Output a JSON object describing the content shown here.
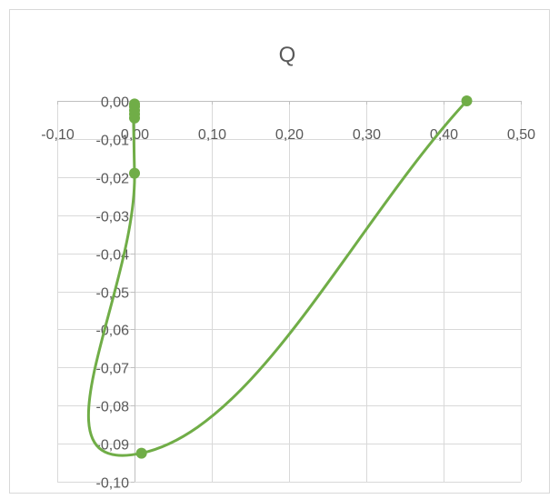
{
  "chart_data": {
    "type": "scatter",
    "title": "Q",
    "xlabel": "",
    "ylabel": "",
    "xlim": [
      -0.1,
      0.5
    ],
    "ylim": [
      -0.1,
      0.0
    ],
    "x_ticks": [
      "-0,10",
      "0,00",
      "0,10",
      "0,20",
      "0,30",
      "0,40",
      "0,50"
    ],
    "y_ticks": [
      "0,00",
      "-0,01",
      "-0,02",
      "-0,03",
      "-0,04",
      "-0,05",
      "-0,06",
      "-0,07",
      "-0,08",
      "-0,09",
      "-0,10"
    ],
    "grid": true,
    "legend": "none",
    "series": [
      {
        "color": "#70ad47",
        "line": "smooth",
        "points": [
          {
            "x": 0.43,
            "y": 0.0
          },
          {
            "x": 0.009,
            "y": -0.0925
          },
          {
            "x": 0.0,
            "y": -0.019
          },
          {
            "x": 0.0,
            "y": -0.0045
          },
          {
            "x": 0.0,
            "y": -0.0035
          },
          {
            "x": 0.0,
            "y": -0.0025
          },
          {
            "x": 0.0,
            "y": -0.0015
          },
          {
            "x": 0.0,
            "y": -0.0008
          }
        ]
      }
    ],
    "colors": {
      "grid": "#d9d9d9",
      "axis": "#bfbfbf",
      "text": "#595959",
      "border": "#d9d9d9"
    }
  }
}
